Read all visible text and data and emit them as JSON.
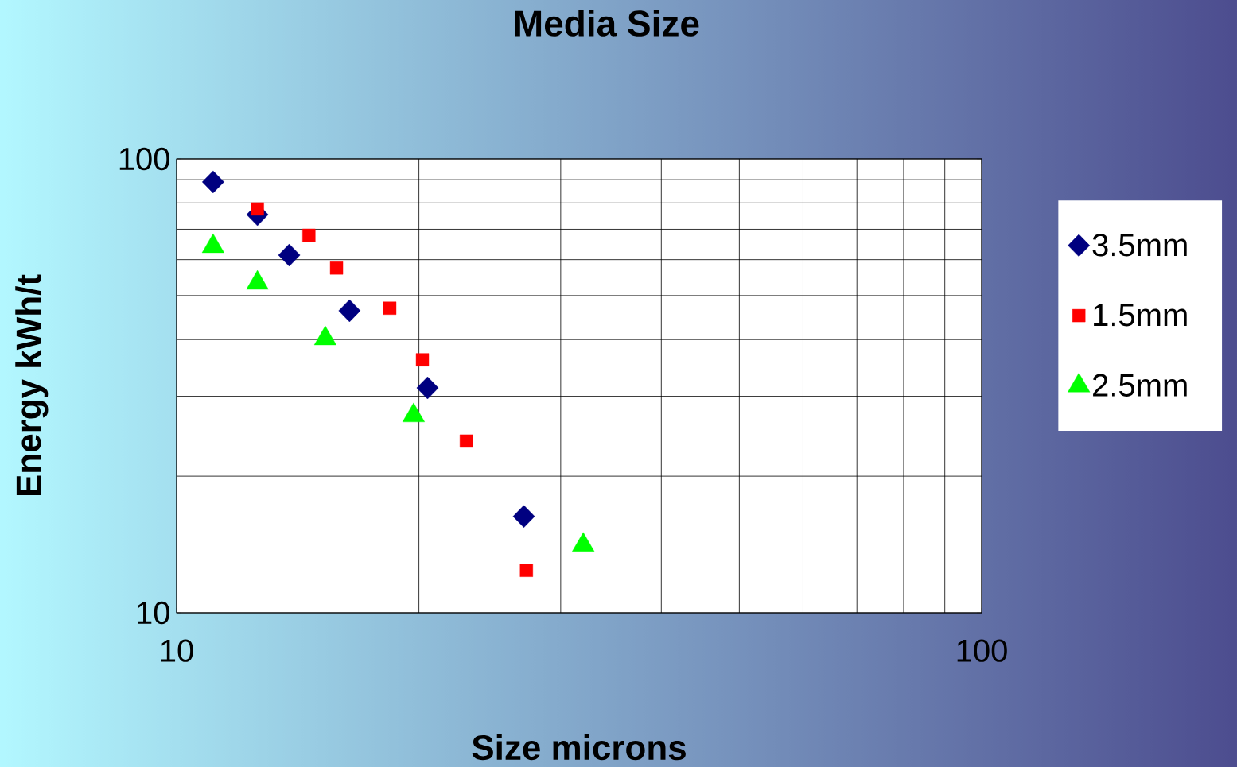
{
  "chart_data": {
    "type": "scatter",
    "title": "Media Size",
    "xlabel": "Size microns",
    "ylabel": "Energy kWh/t",
    "log": "xy",
    "xlim": [
      10,
      100
    ],
    "ylim": [
      10,
      100
    ],
    "xticks": [
      10,
      100
    ],
    "yticks": [
      10,
      100
    ],
    "grid": true,
    "legend": "right",
    "series": [
      {
        "name": "3.5mm",
        "color": "#000080",
        "marker": "diamond",
        "x": [
          11.1,
          12.6,
          13.8,
          16.4,
          20.5,
          27.0
        ],
        "values": [
          89,
          75.4,
          61.4,
          46.3,
          31.3,
          16.3
        ]
      },
      {
        "name": "1.5mm",
        "color": "#ff0000",
        "marker": "square",
        "x": [
          12.6,
          14.6,
          15.8,
          18.4,
          20.2,
          22.9,
          27.2
        ],
        "values": [
          77.6,
          67.9,
          57.5,
          46.9,
          36.1,
          23.9,
          12.4
        ]
      },
      {
        "name": "2.5mm",
        "color": "#00ff00",
        "marker": "triangle",
        "x": [
          11.1,
          12.6,
          15.3,
          19.7,
          32.0
        ],
        "values": [
          64.2,
          53.3,
          40.2,
          27.2,
          14.1
        ]
      }
    ]
  }
}
